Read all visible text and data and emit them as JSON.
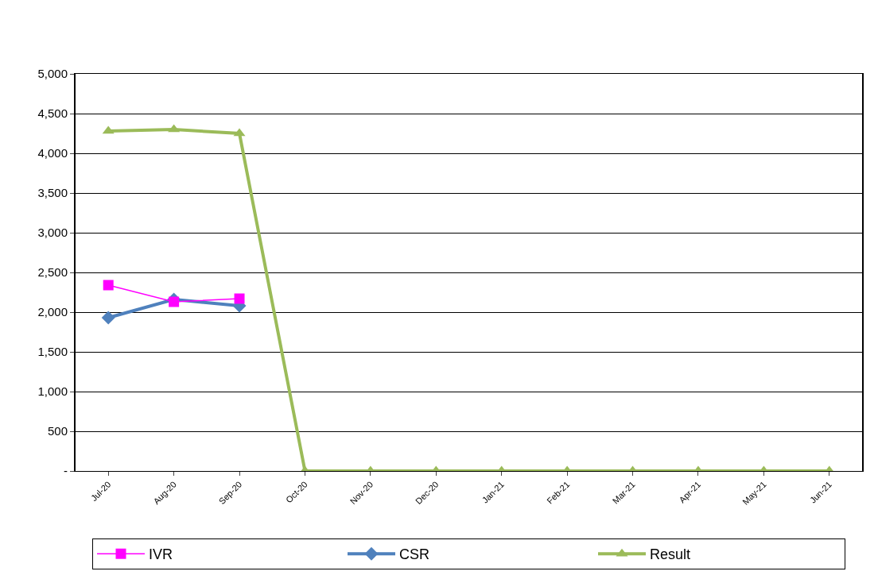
{
  "chart_data": {
    "type": "line",
    "categories": [
      "Jul-20",
      "Aug-20",
      "Sep-20",
      "Oct-20",
      "Nov-20",
      "Dec-20",
      "Jan-21",
      "Feb-21",
      "Mar-21",
      "Apr-21",
      "May-21",
      "Jun-21"
    ],
    "series": [
      {
        "name": "IVR",
        "color": "#ff00ff",
        "marker": "square",
        "values": [
          2340,
          2130,
          2170,
          null,
          null,
          null,
          null,
          null,
          null,
          null,
          null,
          null
        ]
      },
      {
        "name": "CSR",
        "color": "#4f81bd",
        "marker": "diamond",
        "values": [
          1930,
          2160,
          2080,
          null,
          null,
          null,
          null,
          null,
          null,
          null,
          null,
          null
        ]
      },
      {
        "name": "Result",
        "color": "#9bbb59",
        "marker": "triangle",
        "values": [
          4280,
          4300,
          4250,
          0,
          0,
          0,
          0,
          0,
          0,
          0,
          0,
          0
        ]
      }
    ],
    "ylim": [
      0,
      5000
    ],
    "yticks": [
      {
        "value": 0,
        "label": "-"
      },
      500,
      {
        "value": 1000,
        "label": "1,000"
      },
      {
        "value": 1500,
        "label": "1,500"
      },
      {
        "value": 2000,
        "label": "2,000"
      },
      {
        "value": 2500,
        "label": "2,500"
      },
      {
        "value": 3000,
        "label": "3,000"
      },
      {
        "value": 3500,
        "label": "3,500"
      },
      {
        "value": 4000,
        "label": "4,000"
      },
      {
        "value": 4500,
        "label": "4,500"
      },
      {
        "value": 5000,
        "label": "5,000"
      }
    ],
    "grid": "y",
    "legend": "bottom"
  }
}
